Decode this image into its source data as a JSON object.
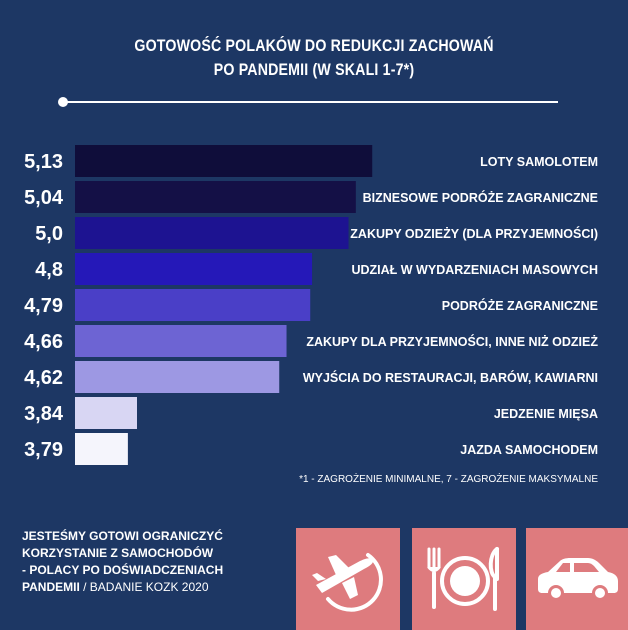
{
  "title_lines": [
    "GOTOWOŚĆ POLAKÓW DO REDUKCJI ZACHOWAŃ",
    "PO PANDEMII (W SKALI 1-7*)"
  ],
  "footnote": "*1 - ZAGROŻENIE MINIMALNE, 7 - ZAGROŻENIE MAKSYMALNE",
  "caption": {
    "lines": [
      "JESTEŚMY GOTOWI OGRANICZYĆ",
      "KORZYSTANIE Z SAMOCHODÓW",
      "- POLACY PO DOŚWIADCZENIACH"
    ],
    "last_bold": "PANDEMII",
    "source": " / BADANIE KOZK 2020"
  },
  "colors": {
    "background": "#1d3764",
    "tile": "#de7b7e",
    "bars": [
      "#0f0d3a",
      "#141046",
      "#1d1391",
      "#2518b8",
      "#4a3fc7",
      "#6d64d3",
      "#9d98e3",
      "#d8d6f3",
      "#f5f5fc"
    ]
  },
  "icons": [
    "airplane-icon",
    "plate-cutlery-icon",
    "car-icon"
  ],
  "chart_data": {
    "type": "bar",
    "orientation": "horizontal",
    "categories": [
      "LOTY SAMOLOTEM",
      "BIZNESOWE PODRÓŻE ZAGRANICZNE",
      "ZAKUPY ODZIEŻY (DLA PRZYJEMNOŚCI)",
      "UDZIAŁ W  WYDARZENIACH MASOWYCH",
      "PODRÓŻE ZAGRANICZNE",
      "ZAKUPY DLA PRZYJEMNOŚCI, INNE NIŻ ODZIEŻ",
      "WYJŚCIA DO RESTAURACJI, BARÓW, KAWIARNI",
      "JEDZENIE MIĘSA",
      "JAZDA SAMOCHODEM"
    ],
    "values": [
      5.13,
      5.04,
      5.0,
      4.8,
      4.79,
      4.66,
      4.62,
      3.84,
      3.79
    ],
    "value_labels": [
      "5,13",
      "5,04",
      "5,0",
      "4,8",
      "4,79",
      "4,66",
      "4,62",
      "3,84",
      "3,79"
    ],
    "xlim": [
      3.5,
      5.2
    ],
    "grid": false,
    "legend": "none"
  }
}
